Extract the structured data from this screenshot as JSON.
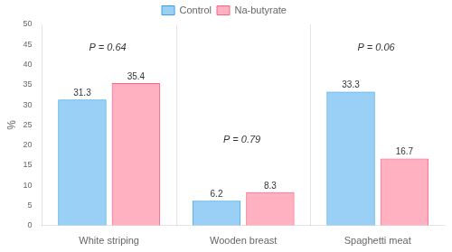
{
  "chart_data": {
    "type": "bar",
    "categories": [
      "White striping",
      "Wooden breast",
      "Spaghetti meat"
    ],
    "series": [
      {
        "name": "Control",
        "values": [
          31.3,
          6.2,
          33.3
        ]
      },
      {
        "name": "Na-butyrate",
        "values": [
          35.4,
          8.3,
          16.7
        ]
      }
    ],
    "ylabel": "%",
    "ylim": [
      0,
      50
    ],
    "yticks": [
      0,
      5,
      10,
      15,
      20,
      25,
      30,
      35,
      40,
      45,
      50
    ],
    "grid": false,
    "legend": "top",
    "data_labels": true,
    "annotations": [
      {
        "text": "P = 0.64",
        "x": "White striping",
        "y": 43
      },
      {
        "text": "P = 0.79",
        "x": "Wooden breast",
        "y": 20
      },
      {
        "text": "P = 0.06",
        "x": "Spaghetti meat",
        "y": 43
      }
    ]
  }
}
